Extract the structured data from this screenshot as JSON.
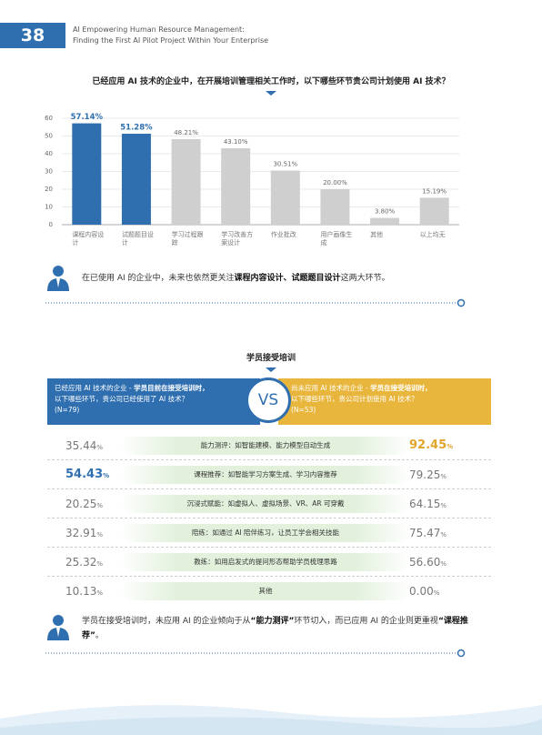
{
  "header": {
    "page_number": "38",
    "title_line1": "AI Empowering Human Resource Management:",
    "title_line2": "Finding the First AI Pilot Project Within Your Enterprise"
  },
  "chart_data": {
    "type": "bar",
    "title": "已经应用 AI 技术的企业中，在开展培训管理相关工作时，以下哪些环节贵公司计划使用 AI 技术？",
    "categories": [
      "课程内容设计",
      "试题题目设计",
      "学习过程跟踪",
      "学习改善方案设计",
      "作业批改",
      "用户画像生成",
      "其他",
      "以上均无"
    ],
    "values": [
      57.14,
      51.28,
      48.21,
      43.1,
      30.51,
      20.0,
      3.8,
      15.19
    ],
    "value_labels": [
      "57.14%",
      "51.28%",
      "48.21%",
      "43.10%",
      "30.51%",
      "20.00%",
      "3.80%",
      "15.19%"
    ],
    "colors": [
      "#2f6fb0",
      "#2f6fb0",
      "#cfcfcf",
      "#cfcfcf",
      "#cfcfcf",
      "#cfcfcf",
      "#cfcfcf",
      "#cfcfcf"
    ],
    "ylim": [
      0,
      60
    ],
    "yticks": [
      0,
      10,
      20,
      30,
      40,
      50,
      60
    ],
    "grid": true
  },
  "note1": [
    "在已使用 AI 的企业中，未来也依然更关注",
    "课程内容设计、试题题目设计",
    "这两大环节。"
  ],
  "section": {
    "title": "学员接受培训",
    "vs": "VS",
    "left_box": [
      "已经应用 AI 技术的企业 - ",
      "学员目前在接受培训时，",
      "以下哪些环节，贵公司已经使用了 AI 技术？",
      "(N=79)"
    ],
    "right_box": [
      "尚未应用 AI 技术的企业 - ",
      "学员在接受培训时，",
      "以下哪些环节，贵公司计划使用 AI 技术？",
      "(N=53)"
    ],
    "rows": [
      {
        "left": "35.44",
        "left_unit": "%",
        "item": "能力测评：如智能建模、能力模型自动生成",
        "right": "92.45",
        "right_unit": "%",
        "highlight": "right"
      },
      {
        "left": "54.43",
        "left_unit": "%",
        "item": "课程推荐：如智能学习方案生成、学习内容推荐",
        "right": "79.25",
        "right_unit": "%",
        "highlight": "left"
      },
      {
        "left": "20.25",
        "left_unit": "%",
        "item": "沉浸式赋能：如虚拟人、虚拟场景、VR、AR 可穿戴",
        "right": "64.15",
        "right_unit": "%",
        "highlight": null
      },
      {
        "left": "32.91",
        "left_unit": "%",
        "item": "陪练：如通过 AI 陪伴练习，让员工学会相关技能",
        "right": "75.47",
        "right_unit": "%",
        "highlight": null
      },
      {
        "left": "25.32",
        "left_unit": "%",
        "item": "教练：如用启发式的提问形态帮助学员梳理思路",
        "right": "56.60",
        "right_unit": "%",
        "highlight": null
      },
      {
        "left": "10.13",
        "left_unit": "%",
        "item": "其他",
        "right": "0.00",
        "right_unit": "%",
        "highlight": null
      }
    ]
  },
  "note2": [
    "学员在接受培训时，未应用 AI 的企业倾向于从",
    "“能力测评”",
    "环节切入，而已应用 AI 的企业则更重视",
    "“课程推荐”",
    "。"
  ]
}
